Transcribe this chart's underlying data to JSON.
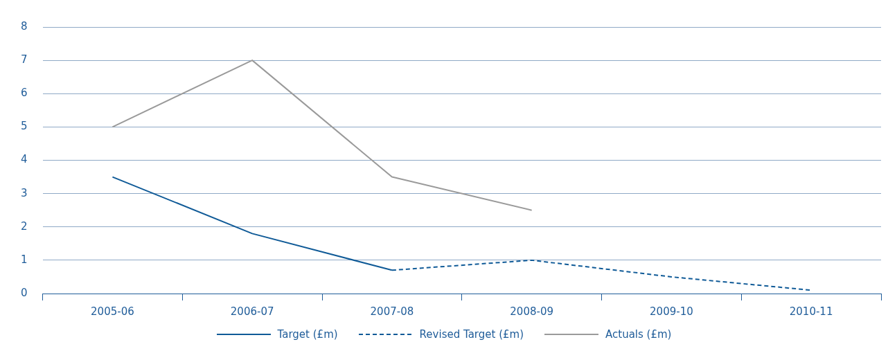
{
  "chart_data": {
    "type": "line",
    "categories": [
      "2005-06",
      "2006-07",
      "2007-08",
      "2008-09",
      "2009-10",
      "2010-11"
    ],
    "series": [
      {
        "name": "Target (£m)",
        "color": "#0f5a97",
        "values": [
          3.5,
          1.8,
          0.7,
          null,
          null,
          null
        ],
        "line_style": "solid"
      },
      {
        "name": "Revised Target (£m)",
        "color": "#0f5a97",
        "values": [
          null,
          null,
          0.7,
          1.0,
          0.5,
          0.1
        ],
        "line_style": "dashed"
      },
      {
        "name": "Actuals (£m)",
        "color": "#9a9a9a",
        "values": [
          5,
          7,
          3.5,
          2.5,
          null,
          null
        ],
        "line_style": "solid"
      }
    ],
    "ylim": [
      0,
      8
    ],
    "yticks": [
      0,
      1,
      2,
      3,
      4,
      5,
      6,
      7,
      8
    ],
    "grid": "y",
    "legend": "bottom",
    "marker": "none"
  }
}
